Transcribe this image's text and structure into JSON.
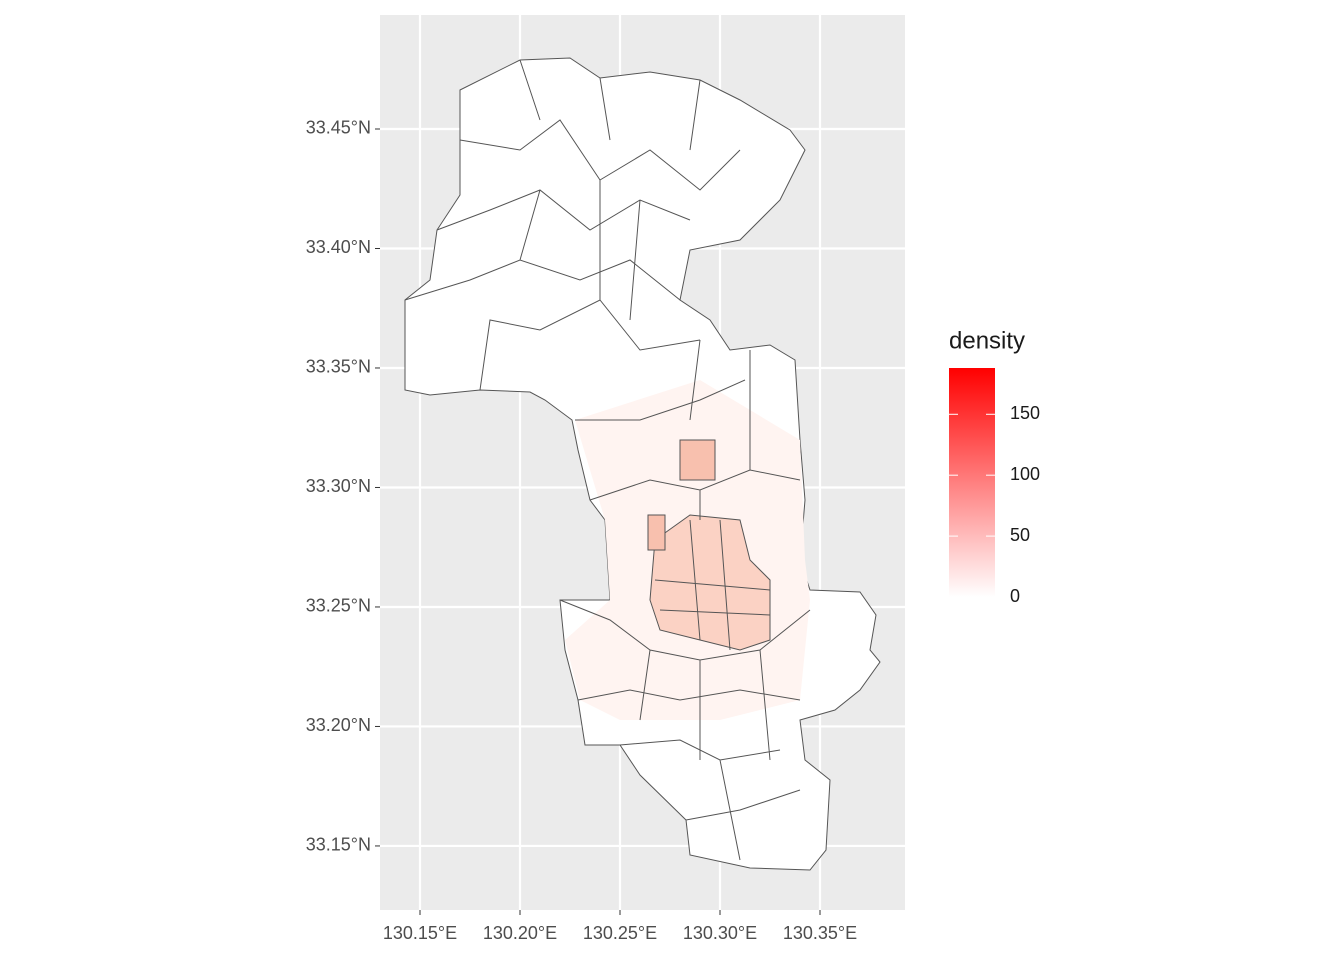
{
  "map": {
    "xlim": [
      130.13,
      130.3925
    ],
    "ylim": [
      33.1232,
      33.4977
    ],
    "xticks": [
      {
        "value": 130.15,
        "label": "130.15°E"
      },
      {
        "value": 130.2,
        "label": "130.20°E"
      },
      {
        "value": 130.25,
        "label": "130.25°E"
      },
      {
        "value": 130.3,
        "label": "130.30°E"
      },
      {
        "value": 130.35,
        "label": "130.35°E"
      }
    ],
    "yticks": [
      {
        "value": 33.15,
        "label": "33.15°N"
      },
      {
        "value": 33.2,
        "label": "33.20°N"
      },
      {
        "value": 33.25,
        "label": "33.25°N"
      },
      {
        "value": 33.3,
        "label": "33.30°N"
      },
      {
        "value": 33.35,
        "label": "33.35°N"
      },
      {
        "value": 33.4,
        "label": "33.40°N"
      },
      {
        "value": 33.45,
        "label": "33.45°N"
      }
    ],
    "legend": {
      "title": "density",
      "lim": [
        0,
        188
      ],
      "ticks": [
        0,
        50,
        100,
        150
      ],
      "colors": [
        "#ffffff",
        "#ff0000"
      ]
    }
  }
}
